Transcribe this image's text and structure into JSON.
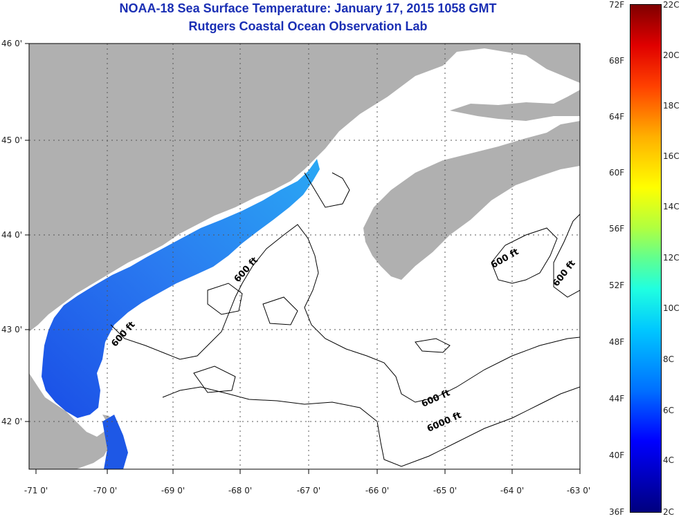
{
  "title": {
    "line1": "NOAA-18 Sea Surface Temperature:  January 17, 2015 1058 GMT",
    "line2": "Rutgers Coastal Ocean Observation Lab"
  },
  "latitude_labels": [
    "46 0'",
    "45 0'",
    "44 0'",
    "43 0'",
    "42 0'"
  ],
  "longitude_labels": [
    "-71 0'",
    "-70 0'",
    "-69 0'",
    "-68 0'",
    "-67 0'",
    "-66 0'",
    "-65 0'",
    "-64 0'",
    "-63 0'"
  ],
  "contour_labels": [
    "600 ft",
    "600 ft",
    "600 ft",
    "600 ft",
    "600 ft",
    "6000 ft"
  ],
  "colorbar": {
    "fahrenheit": [
      "72F",
      "68F",
      "64F",
      "60F",
      "56F",
      "52F",
      "48F",
      "44F",
      "40F",
      "36F"
    ],
    "celsius": [
      "22C",
      "20C",
      "18C",
      "16C",
      "14C",
      "12C",
      "10C",
      "8C",
      "6C",
      "4C",
      "2C"
    ]
  },
  "colors": {
    "title": "#1a2fb4",
    "land": "#b0b0b0",
    "water_warm": "#2aa6f2",
    "water_cool": "#1e58e6"
  }
}
